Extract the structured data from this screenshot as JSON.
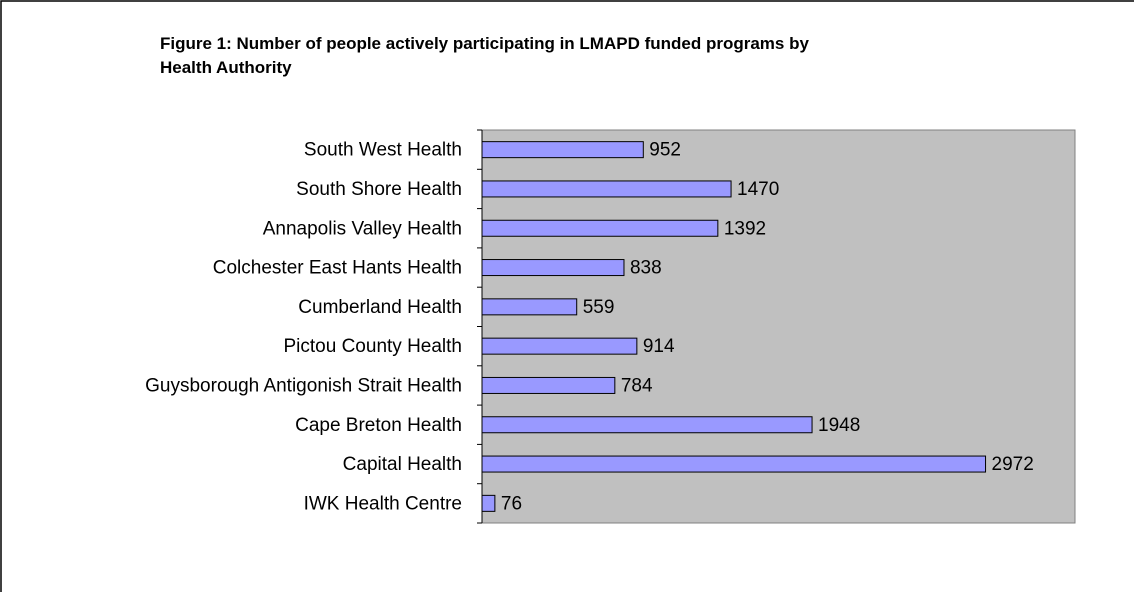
{
  "chart_data": {
    "type": "bar",
    "orientation": "horizontal",
    "title": "Figure 1: Number of people actively participating in LMAPD funded programs by Health Authority",
    "categories": [
      "South West Health",
      "South Shore Health",
      "Annapolis Valley Health",
      "Colchester East Hants Health",
      "Cumberland Health",
      "Pictou County Health",
      "Guysborough Antigonish Strait Health",
      "Cape Breton Health",
      "Capital Health",
      "IWK Health Centre"
    ],
    "values": [
      952,
      1470,
      1392,
      838,
      559,
      914,
      784,
      1948,
      2972,
      76
    ],
    "color": "#9999ff",
    "plot_background": "#c0c0c0",
    "xlim": [
      0,
      3500
    ]
  }
}
